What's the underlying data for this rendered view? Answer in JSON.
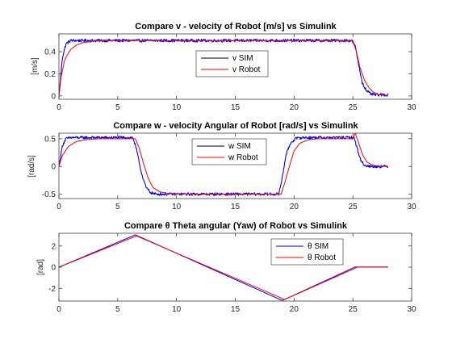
{
  "chart_data": [
    {
      "type": "line",
      "title": "Compare v - velocity of Robot [m/s] vs Simulink",
      "xlabel": "",
      "ylabel": "[m/s]",
      "xlim": [
        0,
        30
      ],
      "ylim": [
        -0.03,
        0.56
      ],
      "xticks": [
        0,
        5,
        10,
        15,
        20,
        25,
        30
      ],
      "yticks": [
        0,
        0.2,
        0.4
      ],
      "yticklabels": [
        "0",
        "0.2",
        "0.4"
      ],
      "grid": false,
      "legend": {
        "placement": "center-right",
        "entries": [
          "v SIM",
          "v Robot"
        ]
      },
      "series": [
        {
          "name": "v SIM",
          "color": "#0000ff",
          "noise": 0.013,
          "x": [
            0,
            0.3,
            0.6,
            1.0,
            1.5,
            3,
            6,
            10,
            15,
            20,
            24.9,
            25.2,
            25.5,
            25.8,
            26.2,
            26.6,
            27,
            28
          ],
          "y": [
            0.0,
            0.35,
            0.47,
            0.5,
            0.5,
            0.5,
            0.5,
            0.5,
            0.5,
            0.5,
            0.5,
            0.45,
            0.28,
            0.12,
            0.04,
            0.015,
            0.01,
            0.01
          ]
        },
        {
          "name": "v Robot",
          "color": "#ff0000",
          "noise": 0.0,
          "x": [
            0,
            0.2,
            0.5,
            1.0,
            1.5,
            2.0,
            3.0,
            4.0,
            6,
            10,
            15,
            20,
            25.0,
            25.3,
            25.6,
            26.0,
            26.4,
            26.8,
            27.2,
            28
          ],
          "y": [
            0.0,
            0.18,
            0.33,
            0.42,
            0.46,
            0.48,
            0.495,
            0.5,
            0.5,
            0.5,
            0.5,
            0.5,
            0.5,
            0.4,
            0.26,
            0.14,
            0.07,
            0.03,
            0.012,
            0.005
          ]
        }
      ]
    },
    {
      "type": "line",
      "title": "Compare w - velocity Angular of Robot [rad/s] vs Simulink",
      "xlabel": "",
      "ylabel": "[rad/s]",
      "xlim": [
        0,
        30
      ],
      "ylim": [
        -0.58,
        0.6
      ],
      "xticks": [
        0,
        5,
        10,
        15,
        20,
        25,
        30
      ],
      "yticks": [
        -0.5,
        0,
        0.5
      ],
      "yticklabels": [
        "-0.5",
        "0",
        "0.5"
      ],
      "grid": false,
      "legend": {
        "placement": "center-right",
        "entries": [
          "w SIM",
          "w Robot"
        ]
      },
      "series": [
        {
          "name": "w SIM",
          "color": "#0000ff",
          "noise": 0.025,
          "x": [
            0,
            0.3,
            0.6,
            1.0,
            2,
            4,
            6.3,
            6.6,
            7.0,
            7.4,
            7.8,
            8.2,
            9,
            12,
            15,
            18.7,
            19.0,
            19.3,
            19.7,
            20.1,
            20.6,
            21.5,
            23,
            25.1,
            25.4,
            25.7,
            26.0,
            26.4,
            27,
            28
          ],
          "y": [
            0.0,
            0.38,
            0.5,
            0.52,
            0.52,
            0.52,
            0.52,
            0.3,
            -0.1,
            -0.38,
            -0.47,
            -0.5,
            -0.5,
            -0.5,
            -0.5,
            -0.5,
            -0.2,
            0.2,
            0.42,
            0.5,
            0.52,
            0.52,
            0.52,
            0.52,
            0.3,
            0.1,
            0.02,
            0.0,
            0.0,
            0.0
          ]
        },
        {
          "name": "w Robot",
          "color": "#ff0000",
          "noise": 0.0,
          "x": [
            0,
            0.3,
            0.8,
            1.5,
            2.5,
            3.5,
            6.5,
            6.8,
            7.2,
            7.6,
            8.0,
            8.6,
            9.4,
            12,
            15,
            18.9,
            19.2,
            19.6,
            20.0,
            20.5,
            21.2,
            22,
            25.0,
            25.2,
            25.5,
            25.8,
            26.2,
            26.6,
            27,
            28
          ],
          "y": [
            0.0,
            0.2,
            0.36,
            0.45,
            0.49,
            0.5,
            0.5,
            0.35,
            0.05,
            -0.22,
            -0.38,
            -0.46,
            -0.49,
            -0.5,
            -0.5,
            -0.5,
            -0.3,
            0.0,
            0.28,
            0.42,
            0.48,
            0.5,
            0.5,
            0.6,
            0.42,
            0.22,
            0.08,
            0.03,
            0.01,
            0.0
          ]
        }
      ]
    },
    {
      "type": "line",
      "title": "Compare θ Theta angular (Yaw) of Robot vs Simulink",
      "xlabel": "",
      "ylabel": "[rad]",
      "xlim": [
        0,
        30
      ],
      "ylim": [
        -3.2,
        3.2
      ],
      "xticks": [
        0,
        5,
        10,
        15,
        20,
        25,
        30
      ],
      "yticks": [
        -2,
        0,
        2
      ],
      "yticklabels": [
        "-2",
        "0",
        "2"
      ],
      "grid": false,
      "legend": {
        "placement": "top-right",
        "entries": [
          "θ SIM",
          "θ Robot"
        ]
      },
      "series": [
        {
          "name": "θ SIM",
          "color": "#0000ff",
          "noise": 0.0,
          "x": [
            0,
            6.5,
            19.0,
            25.2,
            28
          ],
          "y": [
            0.0,
            3.05,
            -3.15,
            0.02,
            0.02
          ]
        },
        {
          "name": "θ Robot",
          "color": "#ff0000",
          "noise": 0.0,
          "x": [
            0,
            6.6,
            19.2,
            25.4,
            28
          ],
          "y": [
            0.0,
            2.95,
            -3.05,
            0.0,
            0.0
          ]
        }
      ]
    }
  ]
}
